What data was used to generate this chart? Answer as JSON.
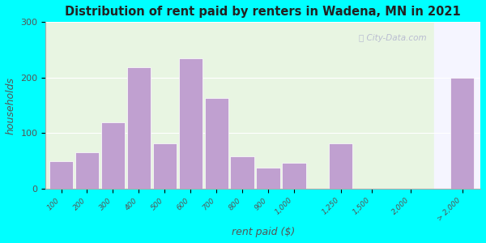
{
  "title": "Distribution of rent paid by renters in Wadena, MN in 2021",
  "xlabel": "rent paid ($)",
  "ylabel": "households",
  "background_outer": "#00FFFF",
  "bar_color": "#c0a0d0",
  "bar_edge_color": "#ffffff",
  "categories": [
    "100",
    "200",
    "300",
    "400",
    "500",
    "600",
    "700",
    "800",
    "900",
    "1,000",
    "1,250",
    "1,500",
    "2,000",
    "> 2,000"
  ],
  "values": [
    50,
    65,
    120,
    218,
    82,
    235,
    163,
    58,
    38,
    46,
    82,
    0,
    0,
    200
  ],
  "ylim": [
    0,
    300
  ],
  "yticks": [
    0,
    100,
    200,
    300
  ],
  "watermark": "ⓘ City-Data.com",
  "bg_left_color": "#e8f5e2",
  "bg_right_color": "#f5f5ff"
}
